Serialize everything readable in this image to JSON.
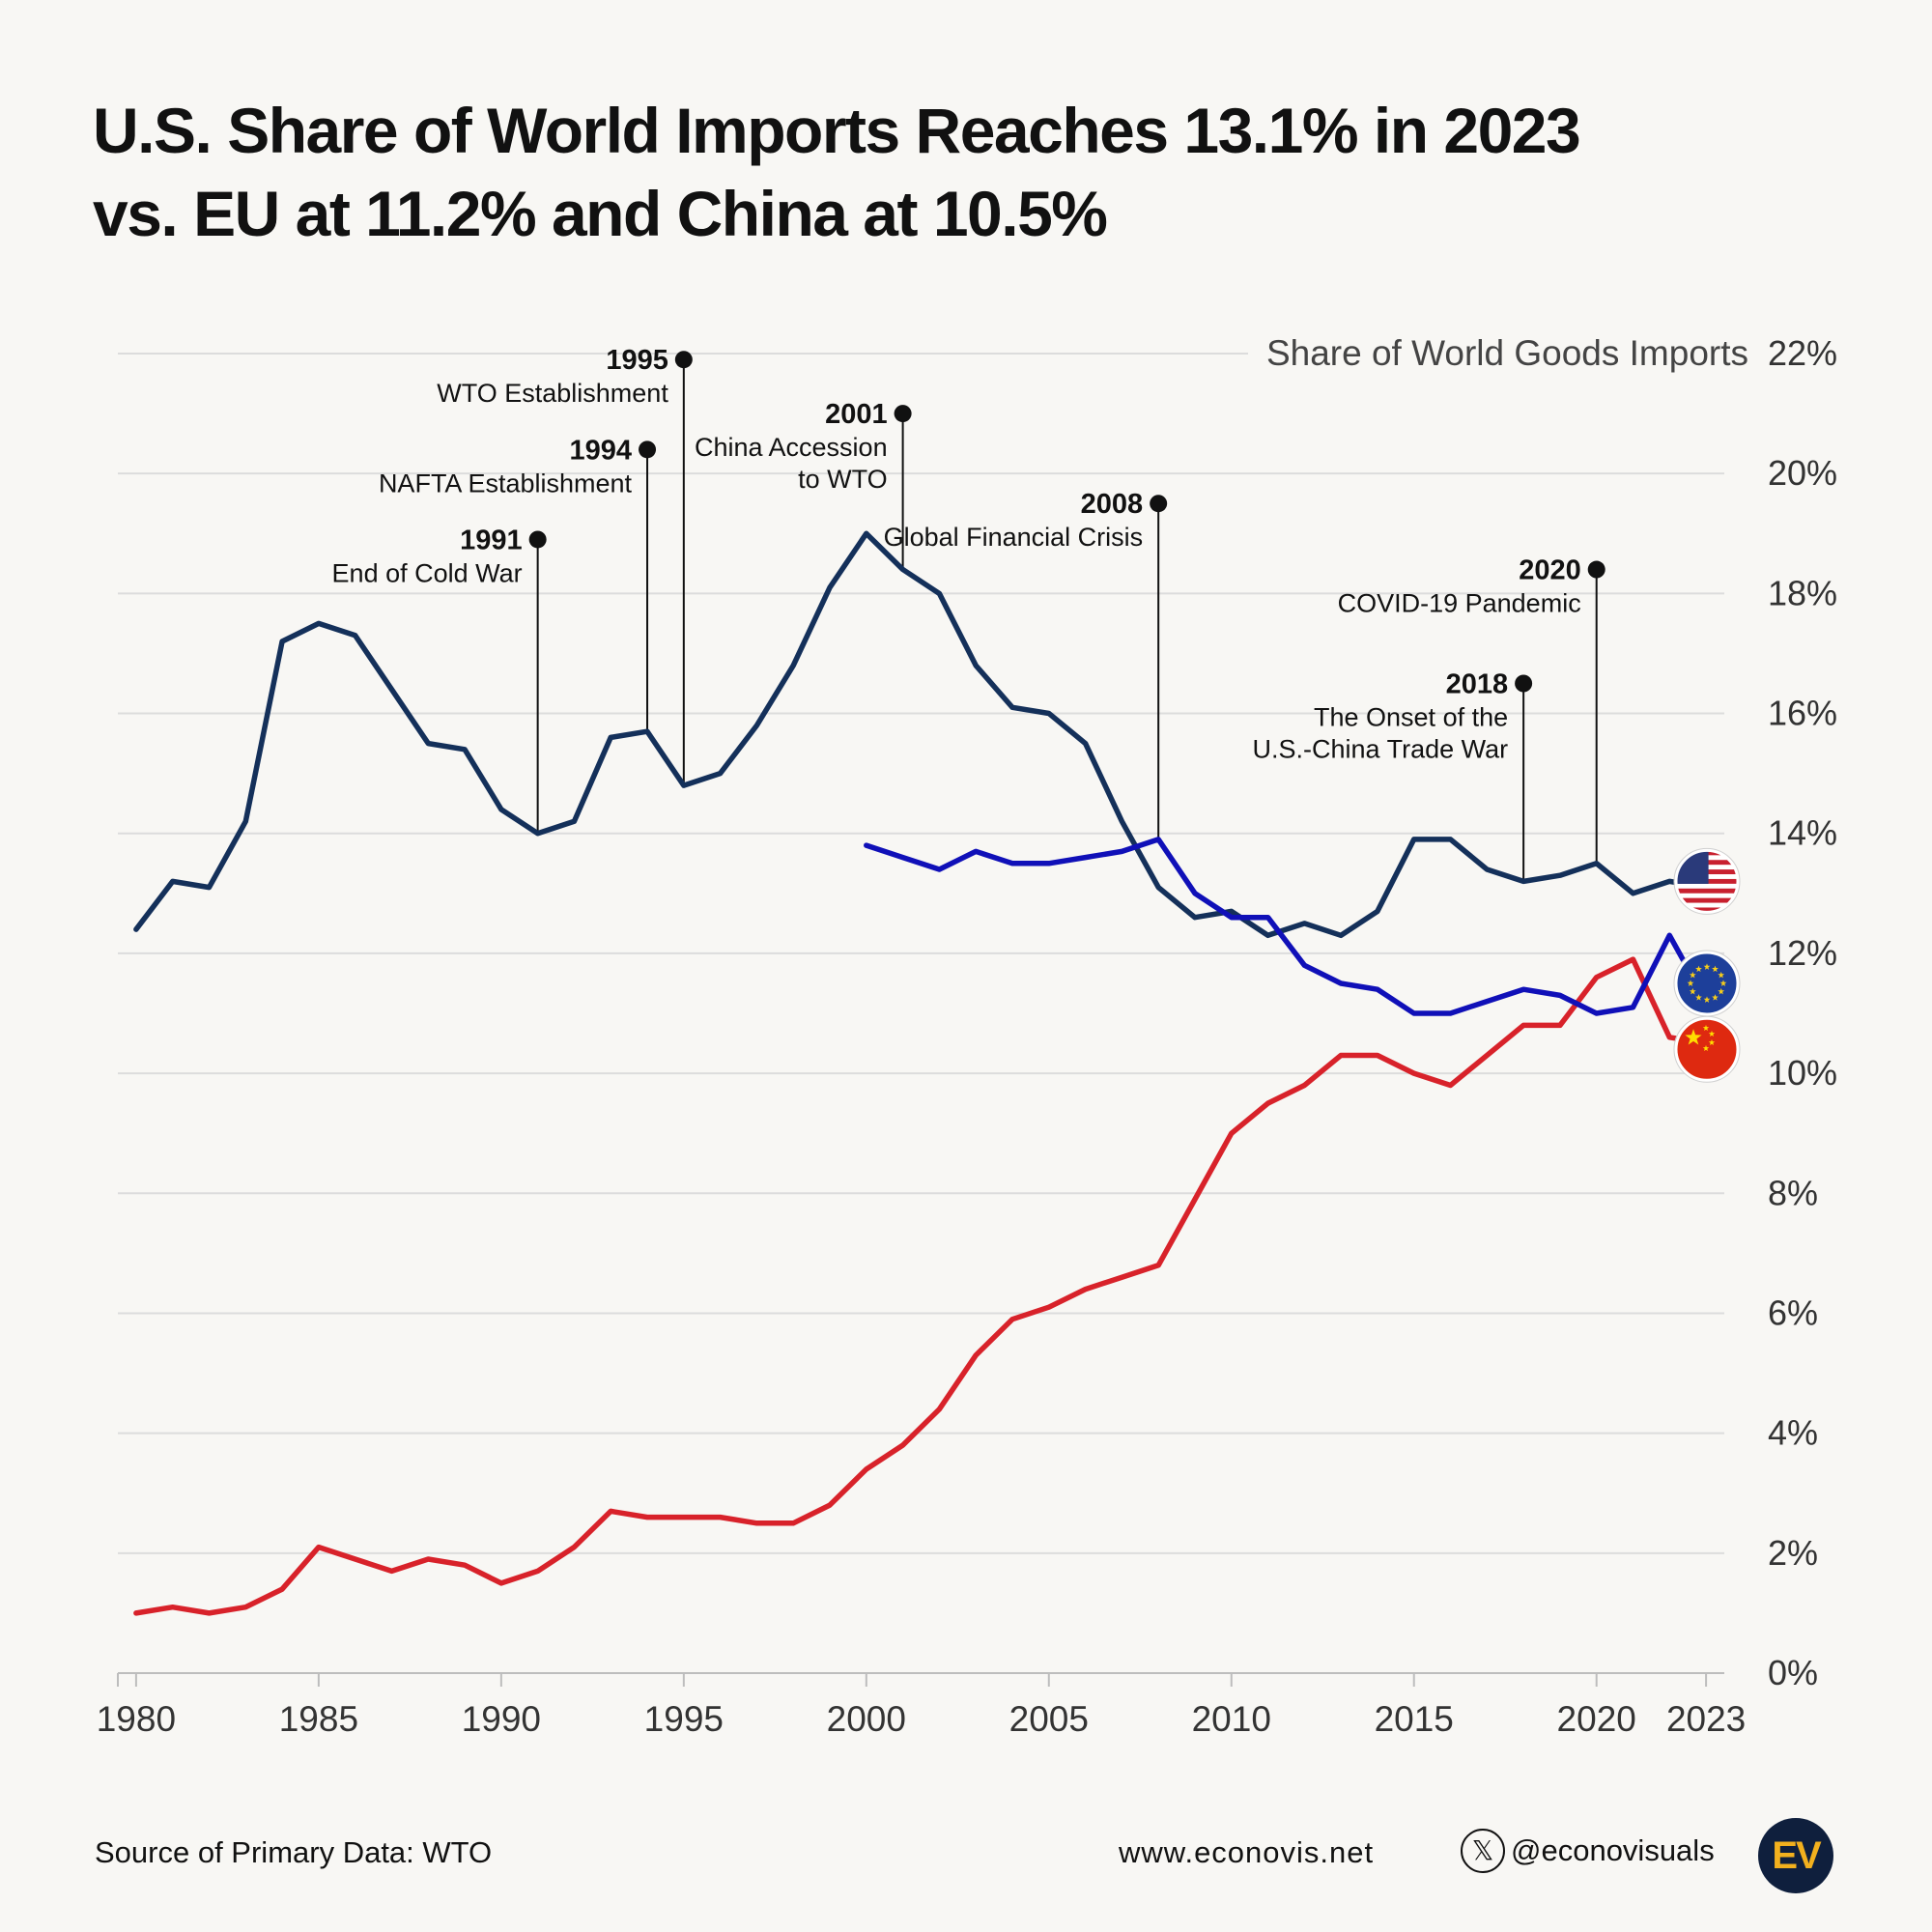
{
  "title": {
    "line1": "U.S. Share of World Imports Reaches 13.1% in 2023",
    "line2": "vs. EU at 11.2% and China at 10.5%"
  },
  "footer": {
    "source": "Source of Primary Data: WTO",
    "website": "www.econovis.net",
    "handle": "@econovisuals",
    "logo": "EV"
  },
  "colors": {
    "us": "#14305a",
    "eu": "#1010b8",
    "china": "#d8222a",
    "grid": "#dcdcdc",
    "background": "#f8f7f4"
  },
  "chart_data": {
    "type": "line",
    "ylabel": "Share of World Goods Imports",
    "ylim": [
      0,
      22
    ],
    "xlim": [
      1979.5,
      2023.5
    ],
    "y_ticks": [
      0,
      2,
      4,
      6,
      8,
      10,
      12,
      14,
      16,
      18,
      20,
      22
    ],
    "y_tick_labels": [
      "0%",
      "2%",
      "4%",
      "6%",
      "8%",
      "10%",
      "12%",
      "14%",
      "16%",
      "18%",
      "20%",
      "22%"
    ],
    "x_ticks": [
      1980,
      1985,
      1990,
      1995,
      2000,
      2005,
      2010,
      2015,
      2020,
      2023
    ],
    "x_tick_labels": [
      "1980",
      "1985",
      "1990",
      "1995",
      "2000",
      "2005",
      "2010",
      "2015",
      "2020",
      "2023"
    ],
    "series": [
      {
        "name": "U.S.",
        "color": "#14305a",
        "flag": "us-flag",
        "x": [
          1980,
          1981,
          1982,
          1983,
          1984,
          1985,
          1986,
          1987,
          1988,
          1989,
          1990,
          1991,
          1992,
          1993,
          1994,
          1995,
          1996,
          1997,
          1998,
          1999,
          2000,
          2001,
          2002,
          2003,
          2004,
          2005,
          2006,
          2007,
          2008,
          2009,
          2010,
          2011,
          2012,
          2013,
          2014,
          2015,
          2016,
          2017,
          2018,
          2019,
          2020,
          2021,
          2022,
          2023
        ],
        "values": [
          12.4,
          13.2,
          13.1,
          14.2,
          17.2,
          17.5,
          17.3,
          16.4,
          15.5,
          15.4,
          14.4,
          14.0,
          14.2,
          15.6,
          15.7,
          14.8,
          15.0,
          15.8,
          16.8,
          18.1,
          19.0,
          18.4,
          18.0,
          16.8,
          16.1,
          16.0,
          15.5,
          14.2,
          13.1,
          12.6,
          12.7,
          12.3,
          12.5,
          12.3,
          12.7,
          13.9,
          13.9,
          13.4,
          13.2,
          13.3,
          13.5,
          13.0,
          13.2,
          13.1
        ]
      },
      {
        "name": "EU",
        "color": "#1010b8",
        "flag": "eu-flag",
        "x": [
          2000,
          2001,
          2002,
          2003,
          2004,
          2005,
          2006,
          2007,
          2008,
          2009,
          2010,
          2011,
          2012,
          2013,
          2014,
          2015,
          2016,
          2017,
          2018,
          2019,
          2020,
          2021,
          2022,
          2023
        ],
        "values": [
          13.8,
          13.6,
          13.4,
          13.7,
          13.5,
          13.5,
          13.6,
          13.7,
          13.9,
          13.0,
          12.6,
          12.6,
          11.8,
          11.5,
          11.4,
          11.0,
          11.0,
          11.2,
          11.4,
          11.3,
          11.0,
          11.1,
          12.3,
          11.2
        ]
      },
      {
        "name": "China",
        "color": "#d8222a",
        "flag": "china-flag",
        "x": [
          1980,
          1981,
          1982,
          1983,
          1984,
          1985,
          1986,
          1987,
          1988,
          1989,
          1990,
          1991,
          1992,
          1993,
          1994,
          1995,
          1996,
          1997,
          1998,
          1999,
          2000,
          2001,
          2002,
          2003,
          2004,
          2005,
          2006,
          2007,
          2008,
          2009,
          2010,
          2011,
          2012,
          2013,
          2014,
          2015,
          2016,
          2017,
          2018,
          2019,
          2020,
          2021,
          2022,
          2023
        ],
        "values": [
          1.0,
          1.1,
          1.0,
          1.1,
          1.4,
          2.1,
          1.9,
          1.7,
          1.9,
          1.8,
          1.5,
          1.7,
          2.1,
          2.7,
          2.6,
          2.6,
          2.6,
          2.5,
          2.5,
          2.8,
          3.4,
          3.8,
          4.4,
          5.3,
          5.9,
          6.1,
          6.4,
          6.6,
          6.8,
          7.9,
          9.0,
          9.5,
          9.8,
          10.3,
          10.3,
          10.0,
          9.8,
          10.3,
          10.8,
          10.8,
          11.6,
          11.9,
          10.6,
          10.5
        ]
      }
    ],
    "annotations": [
      {
        "year": 1991,
        "label_year": "1991",
        "text": [
          "End of Cold War"
        ],
        "dot_y": 18.9,
        "anchor_value": 14.0
      },
      {
        "year": 1994,
        "label_year": "1994",
        "text": [
          "NAFTA Establishment"
        ],
        "dot_y": 20.4,
        "anchor_value": 15.7
      },
      {
        "year": 1995,
        "label_year": "1995",
        "text": [
          "WTO Establishment"
        ],
        "dot_y": 21.9,
        "anchor_value": 14.8
      },
      {
        "year": 2001,
        "label_year": "2001",
        "text": [
          "China Accession",
          "to WTO"
        ],
        "dot_y": 21.0,
        "anchor_value": 18.4
      },
      {
        "year": 2008,
        "label_year": "2008",
        "text": [
          "Global Financial Crisis"
        ],
        "dot_y": 19.5,
        "anchor_value": 13.9
      },
      {
        "year": 2018,
        "label_year": "2018",
        "text": [
          "The Onset of the",
          "U.S.-China Trade War"
        ],
        "dot_y": 16.5,
        "anchor_value": 13.2
      },
      {
        "year": 2020,
        "label_year": "2020",
        "text": [
          "COVID-19 Pandemic"
        ],
        "dot_y": 18.4,
        "anchor_value": 13.5
      }
    ]
  }
}
